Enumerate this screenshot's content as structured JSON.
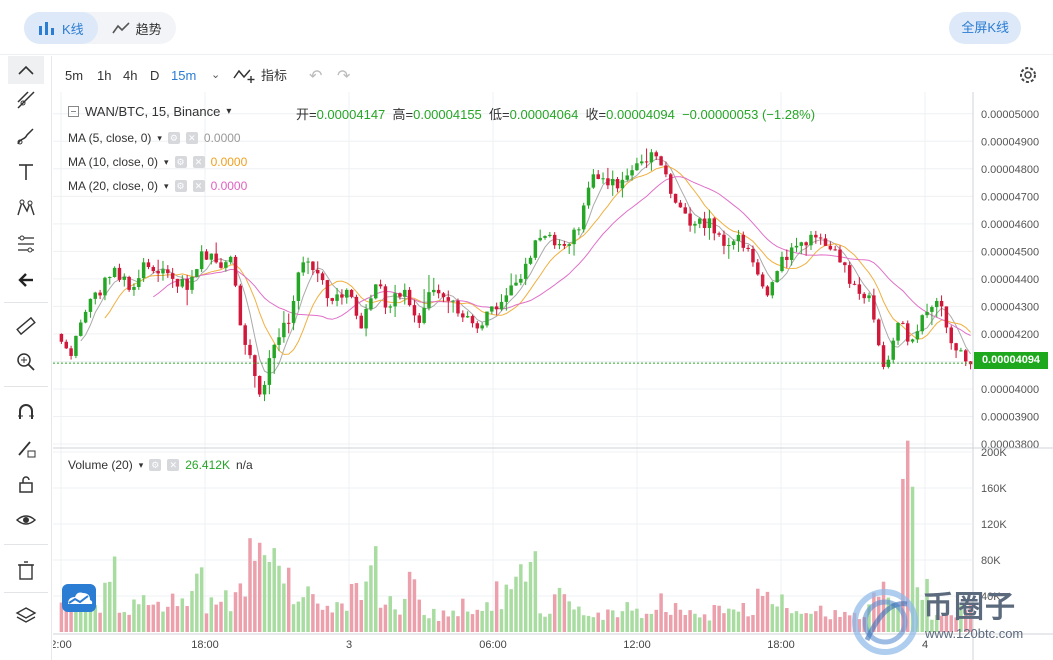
{
  "topbar": {
    "tabs": [
      {
        "label": "K线",
        "icon": "candlestick-icon",
        "active": true
      },
      {
        "label": "趋势",
        "icon": "trend-line-icon",
        "active": false
      }
    ],
    "fullscreen_label": "全屏K线"
  },
  "timeframes": {
    "items": [
      {
        "label": "5m",
        "active": false
      },
      {
        "label": "1h",
        "active": false
      },
      {
        "label": "4h",
        "active": false
      },
      {
        "label": "D",
        "active": false
      },
      {
        "label": "15m",
        "active": true
      }
    ],
    "dropdown_glyph": "⌄",
    "indicators_label": "指标"
  },
  "header": {
    "symbol": "WAN/BTC, 15, Binance",
    "open_label": "开=",
    "open": "0.00004147",
    "high_label": "高=",
    "high": "0.00004155",
    "low_label": "低=",
    "low": "0.00004064",
    "close_label": "收=",
    "close": "0.00004094",
    "change": "−0.00000053 (−1.28%)"
  },
  "ma_legend": [
    {
      "label": "MA (5, close, 0)",
      "value": "0.0000",
      "color": "#999999"
    },
    {
      "label": "MA (10, close, 0)",
      "value": "0.0000",
      "color": "#f0a020"
    },
    {
      "label": "MA (20, close, 0)",
      "value": "0.0000",
      "color": "#e060c0"
    }
  ],
  "volume_legend": {
    "label": "Volume (20)",
    "value": "26.412K",
    "extra": "n/a"
  },
  "last_price_label": "0.00004094",
  "watermark": {
    "text": "币圈子",
    "url": "www.120btc.com"
  },
  "colors": {
    "up": "#26a626",
    "down": "#d0183a",
    "vol_up": "#a8dca0",
    "vol_down": "#eba0ac",
    "ma5": "#aaaaaa",
    "ma10": "#f0b040",
    "ma20": "#e070c8",
    "accent": "#2b7cd3"
  },
  "chart_data": {
    "type": "candlestick",
    "title": "WAN/BTC, 15, Binance",
    "y_ticks": [
      "0.00005000",
      "0.00004900",
      "0.00004800",
      "0.00004700",
      "0.00004600",
      "0.00004500",
      "0.00004400",
      "0.00004300",
      "0.00004200",
      "0.00004100",
      "0.00004000",
      "0.00003900",
      "0.00003800"
    ],
    "ylim": [
      3.8e-05,
      5.05e-05
    ],
    "volume_ticks": [
      "200K",
      "160K",
      "120K",
      "80K",
      "40K"
    ],
    "volume_lim": [
      0,
      200000
    ],
    "x_ticks": [
      "2:00",
      "18:00",
      "3",
      "06:00",
      "12:00",
      "18:00",
      "4"
    ],
    "last_price": 4.094e-05,
    "candles_sampled_every_3": [
      [
        4.2,
        4.22,
        4.08,
        4.12
      ],
      [
        4.12,
        4.3,
        4.1,
        4.28
      ],
      [
        4.28,
        4.36,
        4.22,
        4.34
      ],
      [
        4.34,
        4.46,
        4.3,
        4.44
      ],
      [
        4.44,
        4.48,
        4.32,
        4.36
      ],
      [
        4.36,
        4.5,
        4.32,
        4.46
      ],
      [
        4.46,
        4.52,
        4.38,
        4.42
      ],
      [
        4.42,
        4.48,
        4.34,
        4.4
      ],
      [
        4.4,
        4.44,
        4.28,
        4.36
      ],
      [
        4.36,
        4.54,
        4.34,
        4.5
      ],
      [
        4.5,
        4.56,
        4.42,
        4.46
      ],
      [
        4.46,
        4.52,
        4.4,
        4.48
      ],
      [
        4.48,
        4.5,
        4.1,
        4.16
      ],
      [
        4.16,
        4.2,
        3.92,
        3.98
      ],
      [
        3.98,
        4.2,
        3.9,
        4.16
      ],
      [
        4.16,
        4.3,
        4.1,
        4.24
      ],
      [
        4.24,
        4.5,
        4.2,
        4.46
      ],
      [
        4.46,
        4.5,
        4.36,
        4.42
      ],
      [
        4.42,
        4.46,
        4.28,
        4.32
      ],
      [
        4.32,
        4.4,
        4.24,
        4.36
      ],
      [
        4.36,
        4.4,
        4.18,
        4.22
      ],
      [
        4.22,
        4.42,
        4.18,
        4.38
      ],
      [
        4.38,
        4.42,
        4.26,
        4.3
      ],
      [
        4.3,
        4.4,
        4.24,
        4.36
      ],
      [
        4.36,
        4.4,
        4.2,
        4.24
      ],
      [
        4.24,
        4.5,
        4.22,
        4.36
      ],
      [
        4.36,
        4.4,
        4.26,
        4.32
      ],
      [
        4.32,
        4.36,
        4.2,
        4.26
      ],
      [
        4.26,
        4.3,
        4.18,
        4.22
      ],
      [
        4.22,
        4.32,
        4.2,
        4.3
      ],
      [
        4.3,
        4.38,
        4.26,
        4.34
      ],
      [
        4.34,
        4.46,
        4.3,
        4.4
      ],
      [
        4.4,
        4.58,
        4.36,
        4.54
      ],
      [
        4.54,
        4.6,
        4.48,
        4.56
      ],
      [
        4.56,
        4.6,
        4.5,
        4.52
      ],
      [
        4.52,
        4.6,
        4.46,
        4.58
      ],
      [
        4.58,
        4.84,
        4.56,
        4.78
      ],
      [
        4.78,
        4.84,
        4.7,
        4.74
      ],
      [
        4.74,
        4.8,
        4.68,
        4.76
      ],
      [
        4.76,
        4.86,
        4.72,
        4.82
      ],
      [
        4.82,
        4.92,
        4.78,
        4.86
      ],
      [
        4.86,
        4.88,
        4.76,
        4.78
      ],
      [
        4.78,
        4.8,
        4.64,
        4.66
      ],
      [
        4.66,
        4.7,
        4.56,
        4.6
      ],
      [
        4.6,
        4.66,
        4.54,
        4.62
      ],
      [
        4.62,
        4.64,
        4.48,
        4.52
      ],
      [
        4.52,
        4.6,
        4.46,
        4.56
      ],
      [
        4.56,
        4.58,
        4.44,
        4.46
      ],
      [
        4.46,
        4.5,
        4.3,
        4.34
      ],
      [
        4.34,
        4.52,
        4.32,
        4.48
      ],
      [
        4.48,
        4.56,
        4.44,
        4.52
      ],
      [
        4.52,
        4.58,
        4.46,
        4.56
      ],
      [
        4.56,
        4.58,
        4.48,
        4.52
      ],
      [
        4.52,
        4.54,
        4.44,
        4.46
      ],
      [
        4.46,
        4.48,
        4.34,
        4.38
      ],
      [
        4.38,
        4.42,
        4.3,
        4.34
      ],
      [
        4.34,
        4.38,
        4.04,
        4.08
      ],
      [
        4.08,
        4.26,
        4.06,
        4.24
      ],
      [
        4.24,
        4.26,
        4.14,
        4.18
      ],
      [
        4.18,
        4.32,
        4.16,
        4.28
      ],
      [
        4.28,
        4.34,
        4.2,
        4.3
      ],
      [
        4.3,
        4.3,
        4.1,
        4.14
      ],
      [
        4.14,
        4.16,
        4.06,
        4.09
      ]
    ],
    "volumes_sampled_every_3": [
      38,
      44,
      32,
      70,
      22,
      36,
      28,
      40,
      30,
      62,
      34,
      42,
      50,
      130,
      92,
      60,
      36,
      48,
      32,
      28,
      60,
      90,
      34,
      30,
      56,
      24,
      20,
      30,
      26,
      38,
      46,
      62,
      100,
      26,
      48,
      40,
      30,
      24,
      20,
      30,
      28,
      40,
      34,
      20,
      18,
      38,
      24,
      30,
      60,
      46,
      32,
      20,
      28,
      24,
      20,
      26,
      58,
      46,
      178,
      48,
      24,
      18,
      26
    ],
    "volume_units": "K"
  }
}
